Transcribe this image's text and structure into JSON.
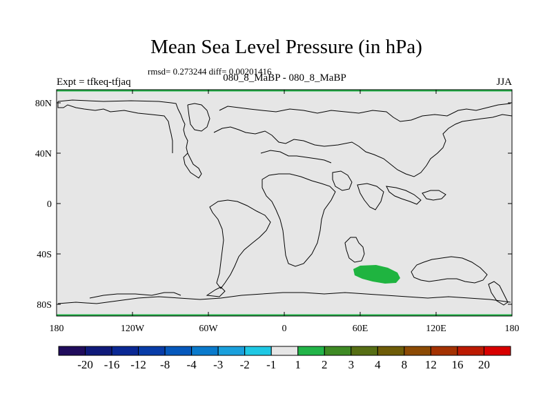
{
  "title": "Mean Sea Level Pressure (in hPa)",
  "stats": "rmsd= 0.273244 diff= 0.00201416",
  "experiment": "Expt = tfkeq-tfjaq",
  "period": "080_8_MaBP - 080_8_MaBP",
  "season": "JJA",
  "map": {
    "background_color": "#e6e6e6",
    "y_tick_labels": [
      "80N",
      "40N",
      "0",
      "40S",
      "80S"
    ],
    "x_tick_labels": [
      "180",
      "120W",
      "60W",
      "0",
      "60E",
      "120E",
      "180"
    ],
    "anomaly_patch": {
      "color": "#1fb440",
      "region": "Southern Indian Ocean",
      "lon_range": [
        60,
        90
      ],
      "lat_range": [
        -63,
        -50
      ]
    }
  },
  "colorbar": {
    "colors": [
      "#200c5c",
      "#101a7a",
      "#0a2894",
      "#083ca8",
      "#0658bc",
      "#0a7acc",
      "#1aa0dc",
      "#1fc8e4",
      "#e6e6e6",
      "#22b448",
      "#3e8a24",
      "#566e14",
      "#6e5c08",
      "#8c4a04",
      "#a43202",
      "#bc1a02",
      "#d80000"
    ],
    "labels": [
      "-20",
      "-16",
      "-12",
      "-8",
      "-4",
      "-3",
      "-2",
      "-1",
      "1",
      "2",
      "3",
      "4",
      "8",
      "12",
      "16",
      "20"
    ]
  }
}
